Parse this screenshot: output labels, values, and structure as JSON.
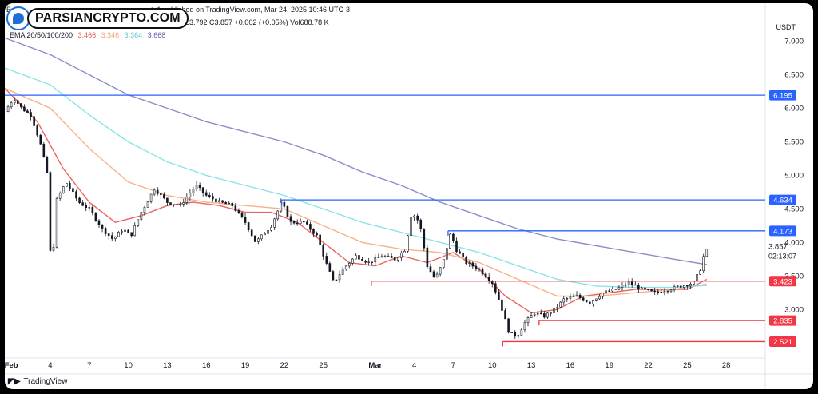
{
  "header": {
    "line1_left": "Bo",
    "line1_right": "to1 published on TradingView.com, Mar 24, 2025 10:46 UTC-3",
    "ohlc": "L3.792  C3.857  +0.002 (+0.05%)  Vol688.78 K",
    "ema_label": "EMA 20/50/100/200",
    "ema_values": [
      "3.466",
      "3.346",
      "3.364",
      "3.668"
    ],
    "currency": "USDT"
  },
  "logo": {
    "name": "PARSIANCRYPTO.COM",
    "icon": "logo-drop-icon"
  },
  "footer": {
    "brand": "TradingView",
    "icon": "tradingview-icon"
  },
  "colors": {
    "ema20": "#e8534f",
    "ema50": "#f4a87c",
    "ema100": "#7ee0e8",
    "ema200": "#7f7fc4",
    "blue_level": "#2962ff",
    "red_level": "#f23645",
    "candle": "#131722"
  },
  "chart_data": {
    "type": "candlestick",
    "symbol_currency": "USDT",
    "y_ticks": [
      "7.000",
      "6.500",
      "6.000",
      "5.500",
      "5.000",
      "4.500",
      "4.000",
      "3.500",
      "3.000"
    ],
    "y_tick_values": [
      7.0,
      6.5,
      6.0,
      5.5,
      5.0,
      4.5,
      4.0,
      3.5,
      3.0
    ],
    "ylim": [
      2.3,
      7.4
    ],
    "x_ticks": [
      "Feb",
      "4",
      "7",
      "10",
      "13",
      "16",
      "19",
      "22",
      "25",
      "Mar",
      "4",
      "7",
      "10",
      "13",
      "16",
      "19",
      "22",
      "25",
      "28"
    ],
    "x_tick_days": [
      0,
      3,
      6,
      9,
      12,
      15,
      18,
      21,
      24,
      28,
      31,
      34,
      37,
      40,
      43,
      46,
      49,
      52,
      55
    ],
    "xlim": [
      -0.5,
      58
    ],
    "current_price": {
      "value": 3.857,
      "label": "3.857",
      "countdown": "02:13:07"
    },
    "levels": [
      {
        "value": 6.195,
        "label": "6.195",
        "color": "blue",
        "from_day": -0.5
      },
      {
        "value": 4.634,
        "label": "4.634",
        "color": "blue",
        "from_day": 20.8
      },
      {
        "value": 4.173,
        "label": "4.173",
        "color": "blue",
        "from_day": 33.6
      },
      {
        "value": 3.423,
        "label": "3.423",
        "color": "red",
        "from_day": 27.7
      },
      {
        "value": 2.835,
        "label": "2.835",
        "color": "red",
        "from_day": 40.6
      },
      {
        "value": 2.521,
        "label": "2.521",
        "color": "red",
        "from_day": 37.8
      }
    ],
    "ema_series": [
      {
        "name": "EMA 20",
        "key": "ema20",
        "points": [
          [
            -0.5,
            6.3
          ],
          [
            2,
            5.8
          ],
          [
            4,
            5.1
          ],
          [
            6,
            4.6
          ],
          [
            8,
            4.3
          ],
          [
            10,
            4.4
          ],
          [
            12,
            4.55
          ],
          [
            14,
            4.6
          ],
          [
            16,
            4.55
          ],
          [
            18,
            4.45
          ],
          [
            20,
            4.45
          ],
          [
            22,
            4.3
          ],
          [
            24,
            4.0
          ],
          [
            26,
            3.7
          ],
          [
            28,
            3.65
          ],
          [
            30,
            3.8
          ],
          [
            32,
            3.7
          ],
          [
            34,
            3.85
          ],
          [
            36,
            3.6
          ],
          [
            38,
            3.2
          ],
          [
            40,
            2.95
          ],
          [
            42,
            3.0
          ],
          [
            44,
            3.2
          ],
          [
            46,
            3.25
          ],
          [
            48,
            3.3
          ],
          [
            50,
            3.3
          ],
          [
            52,
            3.3
          ],
          [
            53.5,
            3.45
          ]
        ]
      },
      {
        "name": "EMA 50",
        "key": "ema50",
        "points": [
          [
            -0.5,
            6.3
          ],
          [
            3,
            6.0
          ],
          [
            6,
            5.4
          ],
          [
            9,
            4.9
          ],
          [
            12,
            4.7
          ],
          [
            15,
            4.6
          ],
          [
            18,
            4.55
          ],
          [
            21,
            4.5
          ],
          [
            24,
            4.25
          ],
          [
            27,
            4.0
          ],
          [
            30,
            3.9
          ],
          [
            33,
            3.85
          ],
          [
            36,
            3.7
          ],
          [
            39,
            3.45
          ],
          [
            42,
            3.2
          ],
          [
            45,
            3.2
          ],
          [
            48,
            3.25
          ],
          [
            51,
            3.3
          ],
          [
            53.5,
            3.38
          ]
        ]
      },
      {
        "name": "EMA 100",
        "key": "ema100",
        "points": [
          [
            -0.5,
            6.6
          ],
          [
            3,
            6.35
          ],
          [
            6,
            5.9
          ],
          [
            9,
            5.5
          ],
          [
            12,
            5.2
          ],
          [
            15,
            5.0
          ],
          [
            18,
            4.85
          ],
          [
            21,
            4.7
          ],
          [
            24,
            4.5
          ],
          [
            27,
            4.3
          ],
          [
            30,
            4.15
          ],
          [
            33,
            4.0
          ],
          [
            36,
            3.85
          ],
          [
            39,
            3.65
          ],
          [
            42,
            3.45
          ],
          [
            45,
            3.35
          ],
          [
            48,
            3.33
          ],
          [
            51,
            3.33
          ],
          [
            53.5,
            3.36
          ]
        ]
      },
      {
        "name": "EMA 200",
        "key": "ema200",
        "points": [
          [
            -0.5,
            7.05
          ],
          [
            3,
            6.8
          ],
          [
            6,
            6.5
          ],
          [
            9,
            6.2
          ],
          [
            12,
            6.0
          ],
          [
            15,
            5.8
          ],
          [
            18,
            5.65
          ],
          [
            21,
            5.5
          ],
          [
            24,
            5.3
          ],
          [
            27,
            5.05
          ],
          [
            30,
            4.85
          ],
          [
            33,
            4.6
          ],
          [
            36,
            4.4
          ],
          [
            39,
            4.2
          ],
          [
            42,
            4.05
          ],
          [
            45,
            3.95
          ],
          [
            48,
            3.85
          ],
          [
            51,
            3.75
          ],
          [
            53.5,
            3.67
          ]
        ]
      }
    ],
    "price_path": [
      [
        -0.5,
        5.95
      ],
      [
        0.2,
        6.15
      ],
      [
        0.8,
        6.0
      ],
      [
        1.5,
        5.9
      ],
      [
        2.2,
        5.5
      ],
      [
        2.8,
        5.0
      ],
      [
        3.1,
        3.3
      ],
      [
        3.4,
        4.6
      ],
      [
        4.2,
        4.9
      ],
      [
        5.2,
        4.6
      ],
      [
        6.0,
        4.5
      ],
      [
        7.0,
        4.2
      ],
      [
        7.8,
        4.05
      ],
      [
        8.6,
        4.2
      ],
      [
        9.2,
        4.1
      ],
      [
        10.0,
        4.45
      ],
      [
        11.0,
        4.8
      ],
      [
        12.0,
        4.6
      ],
      [
        13.0,
        4.55
      ],
      [
        14.2,
        4.85
      ],
      [
        15.0,
        4.7
      ],
      [
        16.0,
        4.6
      ],
      [
        17.0,
        4.55
      ],
      [
        18.0,
        4.3
      ],
      [
        18.8,
        4.0
      ],
      [
        20.0,
        4.25
      ],
      [
        20.8,
        4.6
      ],
      [
        21.5,
        4.3
      ],
      [
        22.5,
        4.3
      ],
      [
        23.5,
        4.1
      ],
      [
        24.2,
        3.7
      ],
      [
        24.8,
        3.4
      ],
      [
        25.5,
        3.6
      ],
      [
        26.5,
        3.8
      ],
      [
        27.5,
        3.7
      ],
      [
        28.5,
        3.8
      ],
      [
        29.5,
        3.75
      ],
      [
        30.3,
        3.9
      ],
      [
        30.8,
        4.45
      ],
      [
        31.4,
        4.3
      ],
      [
        32.0,
        3.65
      ],
      [
        32.6,
        3.45
      ],
      [
        33.2,
        3.7
      ],
      [
        33.8,
        4.15
      ],
      [
        34.2,
        3.9
      ],
      [
        35.0,
        3.7
      ],
      [
        36.0,
        3.6
      ],
      [
        37.0,
        3.4
      ],
      [
        37.6,
        3.1
      ],
      [
        38.3,
        2.65
      ],
      [
        38.9,
        2.6
      ],
      [
        39.5,
        2.8
      ],
      [
        40.2,
        2.95
      ],
      [
        41.0,
        2.9
      ],
      [
        41.8,
        3.0
      ],
      [
        42.5,
        3.15
      ],
      [
        43.5,
        3.2
      ],
      [
        44.5,
        3.1
      ],
      [
        45.5,
        3.25
      ],
      [
        46.5,
        3.3
      ],
      [
        47.5,
        3.4
      ],
      [
        48.5,
        3.3
      ],
      [
        49.5,
        3.25
      ],
      [
        50.5,
        3.3
      ],
      [
        51.5,
        3.35
      ],
      [
        52.5,
        3.4
      ],
      [
        53.0,
        3.6
      ],
      [
        53.4,
        3.9
      ],
      [
        53.6,
        3.857
      ]
    ]
  }
}
